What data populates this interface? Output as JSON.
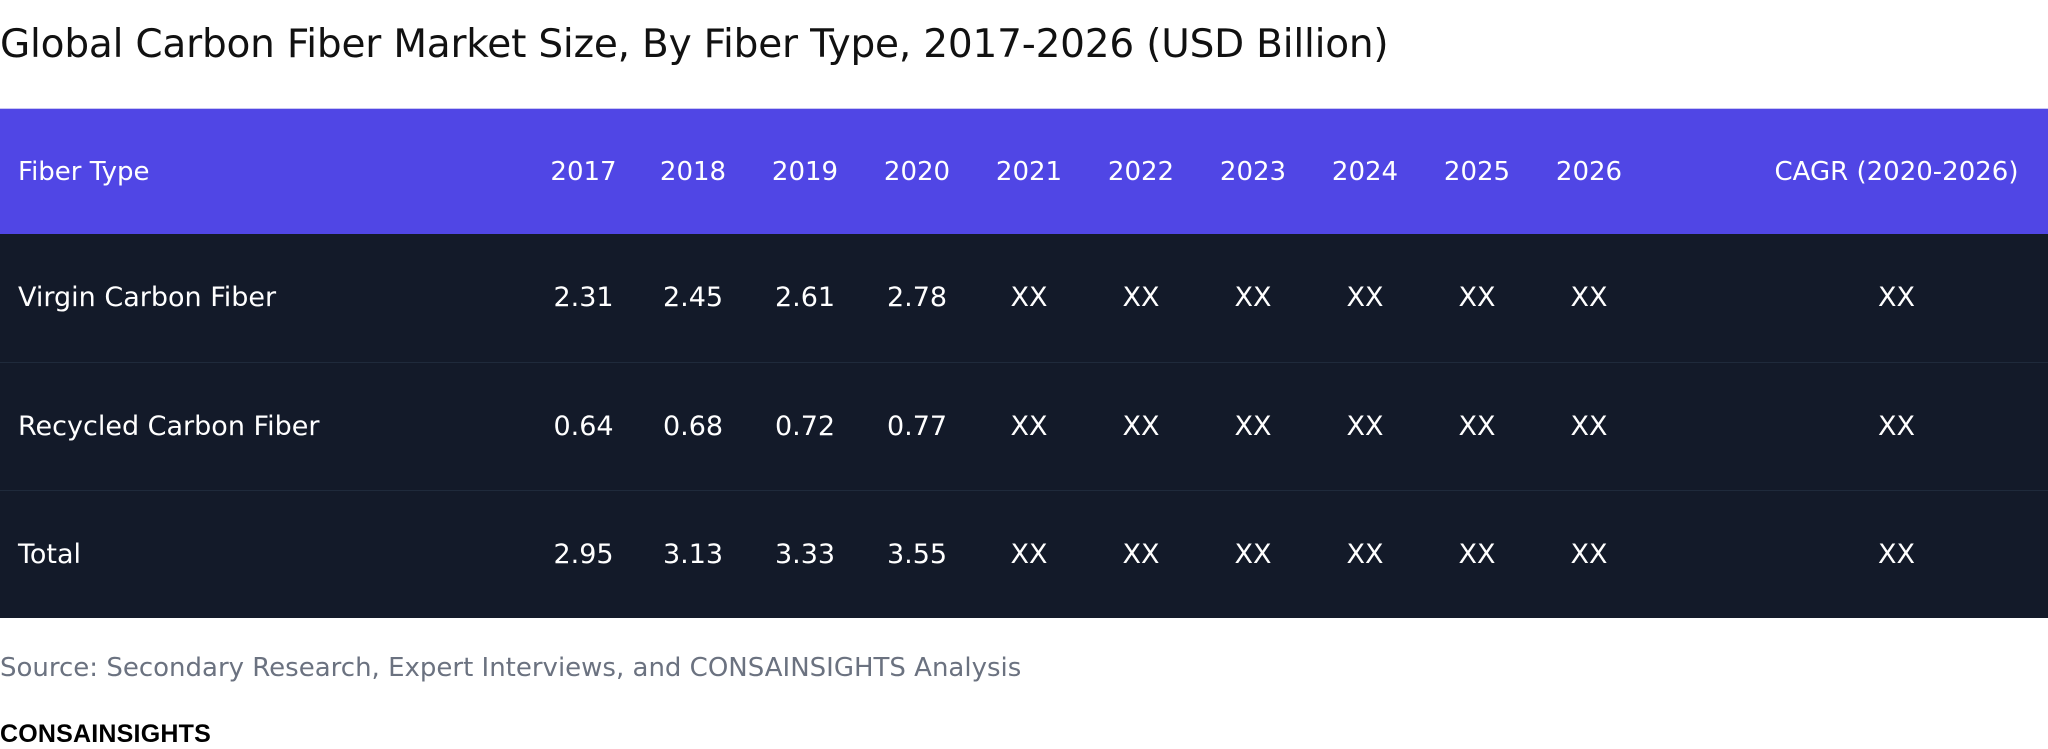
{
  "title": "Global Carbon Fiber Market Size, By Fiber Type, 2017-2026 (USD Billion)",
  "colors": {
    "header_bg": "#5046e5",
    "body_bg": "#131a29",
    "header_text": "#ffffff",
    "body_text": "#ffffff",
    "source_text": "#6b7280"
  },
  "chart_data": {
    "type": "table",
    "title": "Global Carbon Fiber Market Size, By Fiber Type, 2017-2026 (USD Billion)",
    "columns": [
      "Fiber Type",
      "2017",
      "2018",
      "2019",
      "2020",
      "2021",
      "2022",
      "2023",
      "2024",
      "2025",
      "2026",
      "CAGR (2020-2026)"
    ],
    "rows": [
      {
        "name": "Virgin Carbon Fiber",
        "cells": [
          "2.31",
          "2.45",
          "2.61",
          "2.78",
          "XX",
          "XX",
          "XX",
          "XX",
          "XX",
          "XX",
          "XX"
        ]
      },
      {
        "name": "Recycled Carbon Fiber",
        "cells": [
          "0.64",
          "0.68",
          "0.72",
          "0.77",
          "XX",
          "XX",
          "XX",
          "XX",
          "XX",
          "XX",
          "XX"
        ]
      },
      {
        "name": "Total",
        "cells": [
          "2.95",
          "3.13",
          "3.33",
          "3.55",
          "XX",
          "XX",
          "XX",
          "XX",
          "XX",
          "XX",
          "XX"
        ]
      }
    ]
  },
  "source": "Source: Secondary Research, Expert Interviews, and CONSAINSIGHTS Analysis",
  "brand": "CONSAINSIGHTS"
}
